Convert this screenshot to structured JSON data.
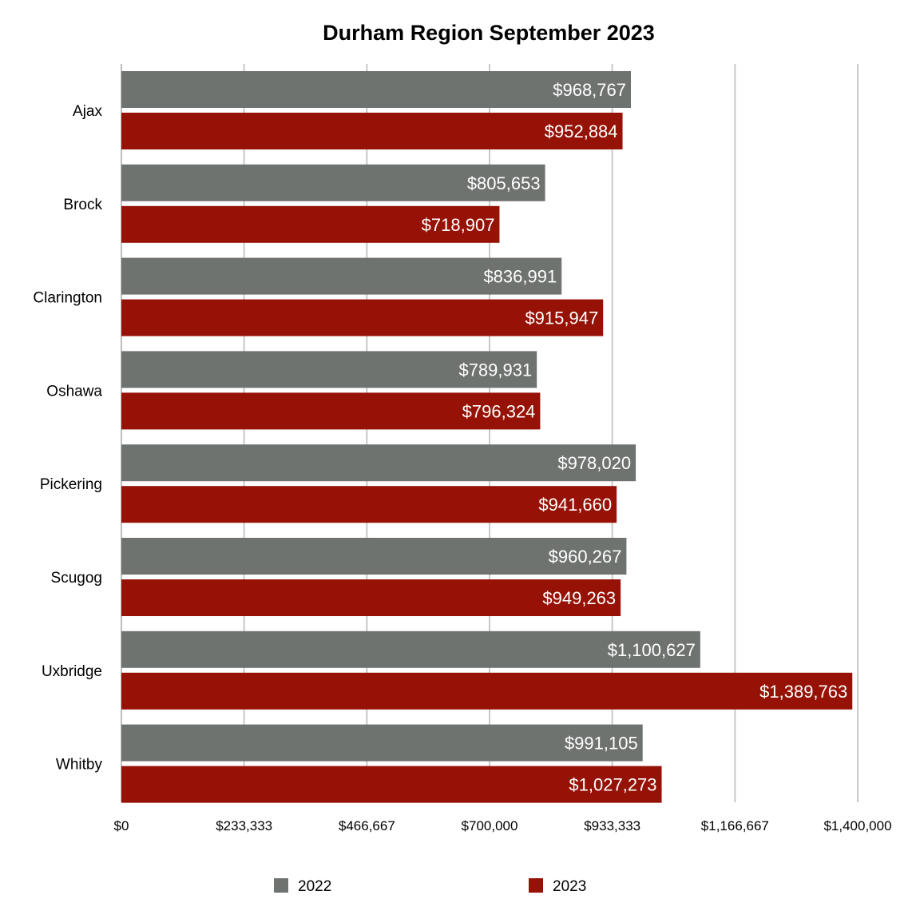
{
  "chart_data": {
    "type": "bar",
    "orientation": "horizontal",
    "title": "Durham Region September 2023",
    "categories": [
      "Ajax",
      "Brock",
      "Clarington",
      "Oshawa",
      "Pickering",
      "Scugog",
      "Uxbridge",
      "Whitby"
    ],
    "series": [
      {
        "name": "2022",
        "color": "#6f7370",
        "values": [
          968767,
          805653,
          836991,
          789931,
          978020,
          960267,
          1100627,
          991105
        ],
        "labels": [
          "$968,767",
          "$805,653",
          "$836,991",
          "$789,931",
          "$978,020",
          "$960,267",
          "$1,100,627",
          "$991,105"
        ]
      },
      {
        "name": "2023",
        "color": "#961206",
        "values": [
          952884,
          718907,
          915947,
          796324,
          941660,
          949263,
          1389763,
          1027273
        ],
        "labels": [
          "$952,884",
          "$718,907",
          "$915,947",
          "$796,324",
          "$941,660",
          "$949,263",
          "$1,389,763",
          "$1,027,273"
        ]
      }
    ],
    "xlim": [
      0,
      1400000
    ],
    "xticks": [
      0,
      233333,
      466667,
      700000,
      933333,
      1166667,
      1400000
    ],
    "xtick_labels": [
      "$0",
      "$233,333",
      "$466,667",
      "$700,000",
      "$933,333",
      "$1,166,667",
      "$1,400,000"
    ],
    "grid": true,
    "legend_position": "bottom"
  }
}
